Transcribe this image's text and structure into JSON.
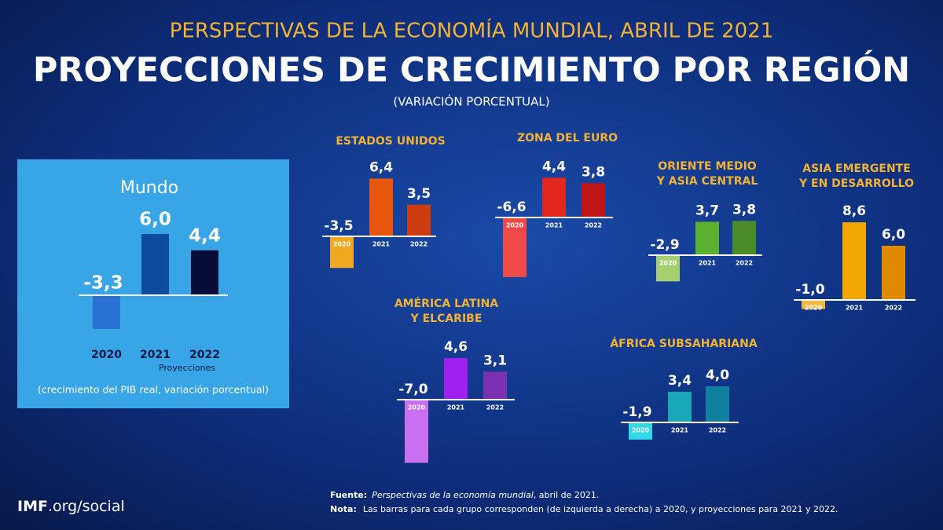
{
  "header": {
    "kicker": "PERSPECTIVAS DE LA ECONOMÍA MUNDIAL, ABRIL DE 2021",
    "title": "PROYECCIONES DE CRECIMIENTO POR REGIÓN",
    "subtitle": "(VARIACIÓN PORCENTUAL)"
  },
  "chart_data": [
    {
      "type": "bar",
      "title": [
        "Mundo"
      ],
      "categories": [
        "2020",
        "2021",
        "2022"
      ],
      "values": [
        -3.3,
        6.0,
        4.4
      ],
      "value_labels": [
        "-3,3",
        "6,0",
        "4,4"
      ],
      "colors": [
        "#2a72d2",
        "#0c4c9c",
        "#070d38"
      ],
      "annotation": "Proyecciones",
      "note": "(crecimiento del PIB real, variación porcentual)"
    },
    {
      "type": "bar",
      "title": [
        "ESTADOS UNIDOS"
      ],
      "categories": [
        "2020",
        "2021",
        "2022"
      ],
      "values": [
        -3.5,
        6.4,
        3.5
      ],
      "value_labels": [
        "-3,5",
        "6,4",
        "3,5"
      ],
      "colors": [
        "#f0a81e",
        "#e8560e",
        "#cc3c10"
      ]
    },
    {
      "type": "bar",
      "title": [
        "ZONA DEL EURO"
      ],
      "categories": [
        "2020",
        "2021",
        "2022"
      ],
      "values": [
        -6.6,
        4.4,
        3.8
      ],
      "value_labels": [
        "-6,6",
        "4,4",
        "3,8"
      ],
      "colors": [
        "#f04a48",
        "#e0281e",
        "#be1616"
      ]
    },
    {
      "type": "bar",
      "title": [
        "ORIENTE MEDIO",
        "Y ASIA CENTRAL"
      ],
      "categories": [
        "2020",
        "2021",
        "2022"
      ],
      "values": [
        -2.9,
        3.7,
        3.8
      ],
      "value_labels": [
        "-2,9",
        "3,7",
        "3,8"
      ],
      "colors": [
        "#a4d070",
        "#5cb030",
        "#4a8a28"
      ]
    },
    {
      "type": "bar",
      "title": [
        "ASIA EMERGENTE",
        "Y EN DESARROLLO"
      ],
      "categories": [
        "2020",
        "2021",
        "2022"
      ],
      "values": [
        -1.0,
        8.6,
        6.0
      ],
      "value_labels": [
        "-1,0",
        "8,6",
        "6,0"
      ],
      "colors": [
        "#f5b840",
        "#f0a800",
        "#e08a00"
      ]
    },
    {
      "type": "bar",
      "title": [
        "AMÉRICA LATINA",
        "Y ELCARIBE"
      ],
      "categories": [
        "2020",
        "2021",
        "2022"
      ],
      "values": [
        -7.0,
        4.6,
        3.1
      ],
      "value_labels": [
        "-7,0",
        "4,6",
        "3,1"
      ],
      "colors": [
        "#c870f0",
        "#a020f0",
        "#7a30b0"
      ]
    },
    {
      "type": "bar",
      "title": [
        "ÁFRICA SUBSAHARIANA"
      ],
      "categories": [
        "2020",
        "2021",
        "2022"
      ],
      "values": [
        -1.9,
        3.4,
        4.0
      ],
      "value_labels": [
        "-1,9",
        "3,4",
        "4,0"
      ],
      "colors": [
        "#30d8e8",
        "#18a8b8",
        "#1080a0"
      ]
    }
  ],
  "footer": {
    "brand_bold": "IMF",
    "brand_rest": ".org/social",
    "source_label": "Fuente:",
    "source_title": "Perspectivas de la economía mundial",
    "source_rest": ", abril de 2021.",
    "note_label": "Nota:",
    "note_text": "Las barras para cada grupo corresponden (de izquierda a derecha) a 2020, y proyecciones para 2021 y 2022."
  }
}
